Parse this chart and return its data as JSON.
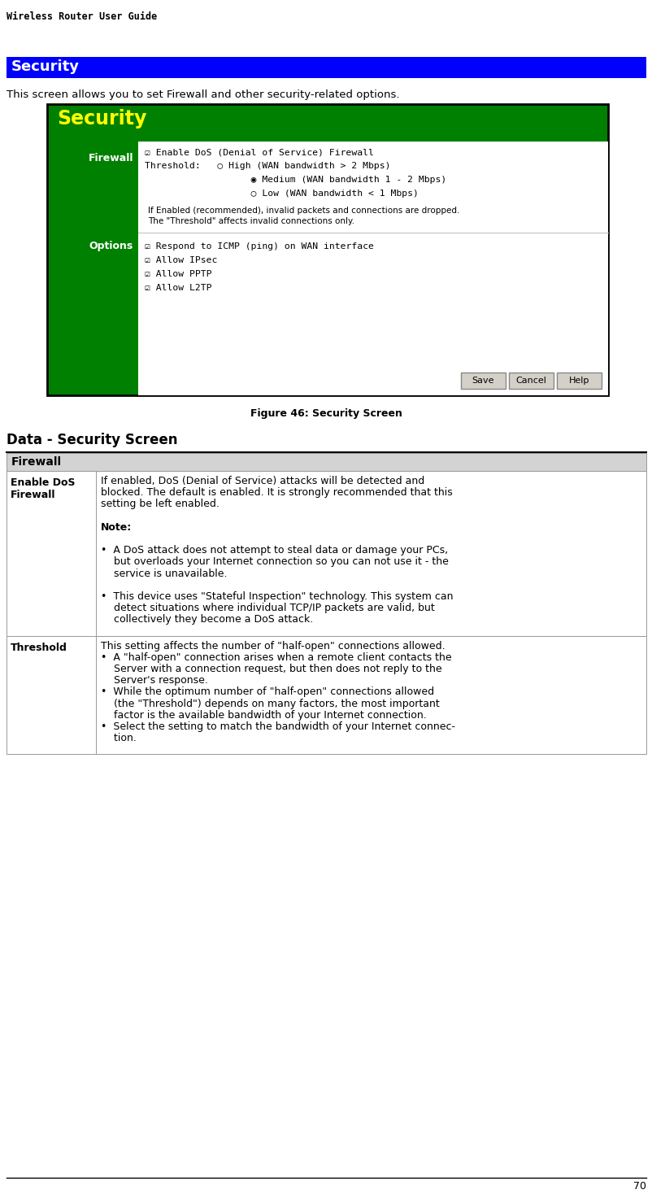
{
  "page_header": "Wireless Router User Guide",
  "page_number": "70",
  "section_title": "Security",
  "section_title_bg": "#0000FF",
  "section_title_color": "#FFFFFF",
  "intro_text": "This screen allows you to set Firewall and other security-related options.",
  "figure_caption": "Figure 46: Security Screen",
  "screenshot": {
    "bg_color": "#008000",
    "border_color": "#000000",
    "title_text": "Security",
    "title_color": "#FFFF00",
    "firewall_label": "Firewall",
    "options_label": "Options",
    "label_color": "#FFFFFF",
    "firewall_items": [
      "☑ Enable DoS (Denial of Service) Firewall",
      "Threshold:   ○ High (WAN bandwidth > 2 Mbps)",
      "                   ◉ Medium (WAN bandwidth 1 - 2 Mbps)",
      "                   ○ Low (WAN bandwidth < 1 Mbps)"
    ],
    "firewall_note_lines": [
      "If Enabled (recommended), invalid packets and connections are dropped.",
      "The \"Threshold\" affects invalid connections only."
    ],
    "options_items": [
      "☑ Respond to ICMP (ping) on WAN interface",
      "☑ Allow IPsec",
      "☑ Allow PPTP",
      "☑ Allow L2TP"
    ],
    "buttons": [
      "Save",
      "Cancel",
      "Help"
    ],
    "button_bg": "#D4D0C8"
  },
  "table_section_title": "Data - Security Screen",
  "table_header": "Firewall",
  "table_header_bg": "#D3D3D3",
  "table_rows": [
    {
      "label": "Enable DoS\nFirewall",
      "content_lines": [
        "If enabled, DoS (Denial of Service) attacks will be detected and",
        "blocked. The default is enabled. It is strongly recommended that this",
        "setting be left enabled.",
        "",
        "Note:",
        "",
        "•  A DoS attack does not attempt to steal data or damage your PCs,",
        "    but overloads your Internet connection so you can not use it - the",
        "    service is unavailable.",
        "",
        "•  This device uses \"Stateful Inspection\" technology. This system can",
        "    detect situations where individual TCP/IP packets are valid, but",
        "    collectively they become a DoS attack."
      ],
      "note_line_index": 4
    },
    {
      "label": "Threshold",
      "content_lines": [
        "This setting affects the number of \"half-open\" connections allowed.",
        "•  A \"half-open\" connection arises when a remote client contacts the",
        "    Server with a connection request, but then does not reply to the",
        "    Server's response.",
        "•  While the optimum number of \"half-open\" connections allowed",
        "    (the \"Threshold\") depends on many factors, the most important",
        "    factor is the available bandwidth of your Internet connection.",
        "•  Select the setting to match the bandwidth of your Internet connec-",
        "    tion."
      ],
      "note_line_index": -1
    }
  ],
  "bg_color": "#FFFFFF",
  "text_color": "#000000",
  "line_color": "#999999"
}
